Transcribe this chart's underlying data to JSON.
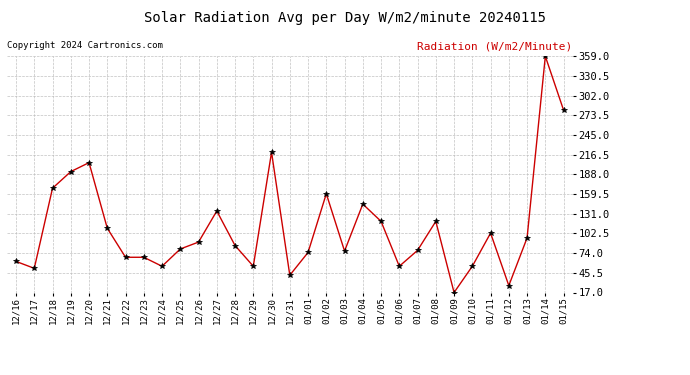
{
  "title": "Solar Radiation Avg per Day W/m2/minute 20240115",
  "copyright": "Copyright 2024 Cartronics.com",
  "legend_label": "Radiation (W/m2/Minute)",
  "dates": [
    "12/16",
    "12/17",
    "12/18",
    "12/19",
    "12/20",
    "12/21",
    "12/22",
    "12/23",
    "12/24",
    "12/25",
    "12/26",
    "12/27",
    "12/28",
    "12/29",
    "12/30",
    "12/31",
    "01/01",
    "01/02",
    "01/03",
    "01/04",
    "01/05",
    "01/06",
    "01/07",
    "01/08",
    "01/09",
    "01/10",
    "01/11",
    "01/12",
    "01/13",
    "01/14",
    "01/15"
  ],
  "values": [
    62,
    52,
    168,
    192,
    205,
    110,
    68,
    68,
    55,
    80,
    90,
    135,
    85,
    55,
    220,
    42,
    75,
    160,
    77,
    145,
    120,
    55,
    78,
    120,
    17,
    55,
    103,
    27,
    96,
    359,
    281
  ],
  "line_color": "#cc0000",
  "marker_color": "#000000",
  "bg_color": "#ffffff",
  "grid_color": "#bbbbbb",
  "title_color": "#000000",
  "copyright_color": "#000000",
  "legend_color": "#cc0000",
  "ylim": [
    17.0,
    359.0
  ],
  "yticks": [
    17.0,
    45.5,
    74.0,
    102.5,
    131.0,
    159.5,
    188.0,
    216.5,
    245.0,
    273.5,
    302.0,
    330.5,
    359.0
  ]
}
